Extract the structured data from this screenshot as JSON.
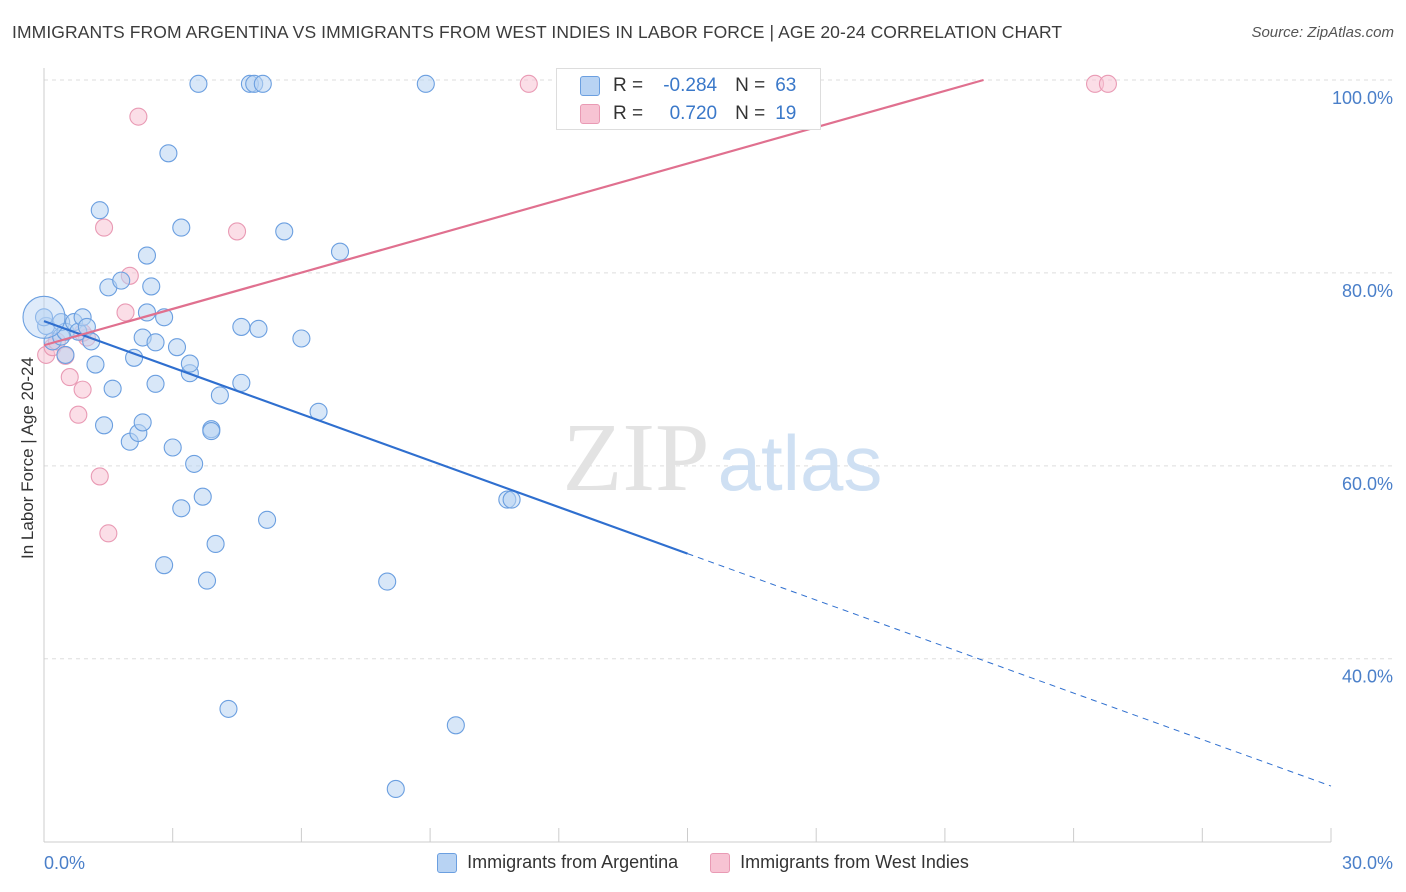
{
  "title": "IMMIGRANTS FROM ARGENTINA VS IMMIGRANTS FROM WEST INDIES IN LABOR FORCE | AGE 20-24 CORRELATION CHART",
  "source": "Source: ZipAtlas.com",
  "watermark": {
    "zip": "ZIP",
    "atlas": "atlas"
  },
  "colors": {
    "series1_fill": "#b8d3f3",
    "series1_stroke": "#6b9fe0",
    "series1_line": "#2f6fcf",
    "series2_fill": "#f7c3d3",
    "series2_stroke": "#e99ab4",
    "series2_line": "#e0708f",
    "tick_label": "#4a7fc9",
    "grid": "#dddddd"
  },
  "stats": [
    {
      "r_label": "R =",
      "r_value": "-0.284",
      "n_label": "N =",
      "n_value": "63"
    },
    {
      "r_label": "R =",
      "r_value": "0.720",
      "n_label": "N =",
      "n_value": "19"
    }
  ],
  "chart_data": {
    "type": "scatter",
    "xlabel": "",
    "ylabel": "In Labor Force | Age 20-24",
    "xlim": [
      0,
      30
    ],
    "ylim": [
      21,
      100
    ],
    "x_tick_labels": [
      "0.0%",
      "30.0%"
    ],
    "y_ticks": [
      40,
      60,
      80,
      100
    ],
    "y_tick_labels": [
      "40.0%",
      "60.0%",
      "80.0%",
      "100.0%"
    ],
    "grid": "horizontal dashed",
    "legend": "bottom-center",
    "series": [
      {
        "name": "Immigrants from Argentina",
        "points": [
          [
            0.05,
            74.5
          ],
          [
            0.2,
            72.9
          ],
          [
            0.4,
            73.4
          ],
          [
            0.4,
            74.9
          ],
          [
            0.5,
            73.9
          ],
          [
            0.7,
            74.9
          ],
          [
            0.8,
            73.9
          ],
          [
            0.9,
            75.4
          ],
          [
            1.0,
            74.4
          ],
          [
            1.1,
            72.9
          ],
          [
            0.5,
            71.5
          ],
          [
            1.2,
            70.5
          ],
          [
            1.4,
            64.2
          ],
          [
            1.3,
            86.5
          ],
          [
            1.5,
            78.5
          ],
          [
            1.8,
            79.2
          ],
          [
            2.0,
            62.5
          ],
          [
            2.1,
            71.2
          ],
          [
            1.6,
            68.0
          ],
          [
            2.2,
            63.4
          ],
          [
            2.3,
            73.3
          ],
          [
            2.4,
            75.9
          ],
          [
            2.3,
            64.5
          ],
          [
            2.4,
            81.8
          ],
          [
            2.5,
            78.6
          ],
          [
            2.6,
            72.8
          ],
          [
            2.6,
            68.5
          ],
          [
            2.8,
            49.7
          ],
          [
            2.8,
            75.4
          ],
          [
            2.9,
            92.4
          ],
          [
            3.0,
            61.9
          ],
          [
            3.1,
            72.3
          ],
          [
            3.2,
            55.6
          ],
          [
            3.2,
            84.7
          ],
          [
            3.4,
            69.6
          ],
          [
            3.4,
            70.6
          ],
          [
            3.5,
            60.2
          ],
          [
            3.7,
            56.8
          ],
          [
            3.6,
            99.6
          ],
          [
            3.8,
            48.1
          ],
          [
            3.9,
            63.8
          ],
          [
            3.9,
            63.6
          ],
          [
            4.0,
            51.9
          ],
          [
            4.1,
            67.3
          ],
          [
            4.3,
            34.8
          ],
          [
            4.6,
            68.6
          ],
          [
            4.6,
            74.4
          ],
          [
            4.8,
            99.6
          ],
          [
            4.9,
            99.6
          ],
          [
            5.0,
            74.2
          ],
          [
            5.1,
            99.6
          ],
          [
            5.2,
            54.4
          ],
          [
            5.6,
            84.3
          ],
          [
            6.0,
            73.2
          ],
          [
            6.4,
            65.6
          ],
          [
            6.9,
            82.2
          ],
          [
            8.0,
            48.0
          ],
          [
            8.2,
            26.5
          ],
          [
            8.9,
            99.6
          ],
          [
            9.6,
            33.1
          ],
          [
            10.8,
            56.5
          ],
          [
            10.9,
            56.5
          ],
          [
            0.0,
            75.4
          ]
        ]
      },
      {
        "name": "Immigrants from West Indies",
        "points": [
          [
            0.05,
            71.5
          ],
          [
            0.2,
            72.3
          ],
          [
            0.3,
            72.9
          ],
          [
            0.5,
            71.4
          ],
          [
            0.6,
            69.2
          ],
          [
            0.8,
            65.3
          ],
          [
            0.9,
            67.9
          ],
          [
            1.0,
            73.3
          ],
          [
            1.3,
            58.9
          ],
          [
            1.4,
            84.7
          ],
          [
            1.5,
            53.0
          ],
          [
            1.9,
            75.9
          ],
          [
            2.0,
            79.7
          ],
          [
            2.2,
            96.2
          ],
          [
            4.5,
            84.3
          ],
          [
            11.3,
            99.6
          ],
          [
            24.5,
            99.6
          ],
          [
            24.8,
            99.6
          ],
          [
            0.9,
            73.8
          ]
        ]
      }
    ],
    "trendlines": [
      {
        "series": "Immigrants from Argentina",
        "x_start": 0,
        "y_start": 75.0,
        "x_solid_end": 15.0,
        "x_end": 30,
        "y_end": 26.8
      },
      {
        "series": "Immigrants from West Indies",
        "x_start": 0,
        "y_start": 72.5,
        "x_end": 21.9,
        "y_end": 100
      }
    ]
  }
}
